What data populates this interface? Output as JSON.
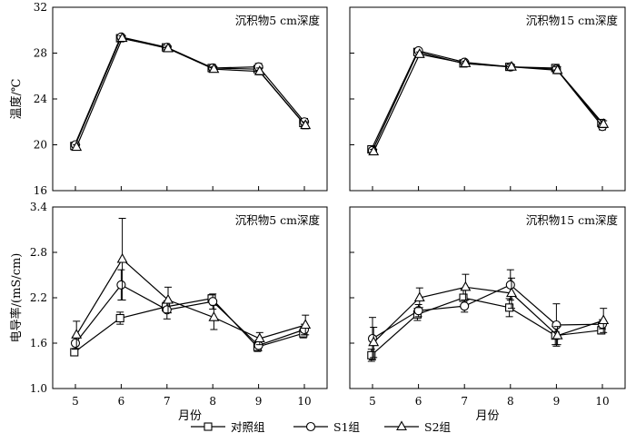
{
  "chart_data": [
    {
      "type": "line",
      "title": "沉积物5 cm深度",
      "ylabel": "温度/℃",
      "xlabel": "",
      "x": [
        "5",
        "6",
        "7",
        "8",
        "9",
        "10"
      ],
      "ylim": [
        16,
        32
      ],
      "yticks": [
        "16",
        "20",
        "24",
        "28",
        "32"
      ],
      "series": [
        {
          "name": "对照组",
          "values": [
            19.9,
            29.3,
            28.5,
            26.7,
            26.6,
            21.9
          ],
          "errors": [
            0.2,
            0.2,
            0.2,
            0.2,
            0.3,
            0.3
          ]
        },
        {
          "name": "S1组",
          "values": [
            20.0,
            29.4,
            28.5,
            26.7,
            26.8,
            22.0
          ],
          "errors": [
            0.2,
            0.2,
            0.2,
            0.2,
            0.3,
            0.3
          ]
        },
        {
          "name": "S2组",
          "values": [
            19.8,
            29.3,
            28.4,
            26.6,
            26.4,
            21.7
          ],
          "errors": [
            0.2,
            0.2,
            0.2,
            0.2,
            0.3,
            0.3
          ]
        }
      ]
    },
    {
      "type": "line",
      "title": "沉积物15 cm深度",
      "ylabel": "",
      "xlabel": "",
      "x": [
        "5",
        "6",
        "7",
        "8",
        "9",
        "10"
      ],
      "ylim": [
        16,
        32
      ],
      "series": [
        {
          "name": "对照组",
          "values": [
            19.6,
            28.1,
            27.1,
            26.8,
            26.7,
            21.9
          ],
          "errors": [
            0.2,
            0.2,
            0.2,
            0.2,
            0.3,
            0.3
          ]
        },
        {
          "name": "S1组",
          "values": [
            19.5,
            28.2,
            27.2,
            26.8,
            26.6,
            21.6
          ],
          "errors": [
            0.2,
            0.2,
            0.2,
            0.2,
            0.3,
            0.3
          ]
        },
        {
          "name": "S2组",
          "values": [
            19.4,
            27.9,
            27.1,
            26.8,
            26.5,
            21.8
          ],
          "errors": [
            0.2,
            0.2,
            0.2,
            0.2,
            0.3,
            0.3
          ]
        }
      ]
    },
    {
      "type": "line",
      "title": "沉积物5 cm深度",
      "ylabel": "电导率/(mS/cm)",
      "xlabel": "月份",
      "x": [
        "5",
        "6",
        "7",
        "8",
        "9",
        "10"
      ],
      "ylim": [
        1.0,
        3.4
      ],
      "yticks": [
        "1.0",
        "1.6",
        "2.2",
        "2.8",
        "3.4"
      ],
      "series": [
        {
          "name": "对照组",
          "values": [
            1.48,
            1.93,
            2.08,
            2.19,
            1.55,
            1.73
          ],
          "errors": [
            0.04,
            0.08,
            0.06,
            0.05,
            0.06,
            0.06
          ]
        },
        {
          "name": "S1组",
          "values": [
            1.6,
            2.37,
            2.04,
            2.15,
            1.57,
            1.78
          ],
          "errors": [
            0.08,
            0.2,
            0.12,
            0.1,
            0.07,
            0.07
          ]
        },
        {
          "name": "S2组",
          "values": [
            1.71,
            2.71,
            2.17,
            1.94,
            1.66,
            1.84
          ],
          "errors": [
            0.18,
            0.54,
            0.17,
            0.16,
            0.08,
            0.13
          ]
        }
      ]
    },
    {
      "type": "line",
      "title": "沉积物15 cm深度",
      "ylabel": "",
      "xlabel": "月份",
      "x": [
        "5",
        "6",
        "7",
        "8",
        "9",
        "10"
      ],
      "ylim": [
        1.0,
        3.4
      ],
      "series": [
        {
          "name": "对照组",
          "values": [
            1.44,
            1.98,
            2.2,
            2.07,
            1.7,
            1.77
          ],
          "errors": [
            0.08,
            0.08,
            0.12,
            0.12,
            0.12,
            0.05
          ]
        },
        {
          "name": "S1组",
          "values": [
            1.66,
            2.03,
            2.09,
            2.37,
            1.84,
            1.85
          ],
          "errors": [
            0.28,
            0.08,
            0.08,
            0.2,
            0.28,
            0.06
          ]
        },
        {
          "name": "S2组",
          "values": [
            1.61,
            2.2,
            2.34,
            2.26,
            1.7,
            1.9
          ],
          "errors": [
            0.2,
            0.13,
            0.17,
            0.2,
            0.12,
            0.16
          ]
        }
      ]
    }
  ],
  "legend": {
    "position": "bottom-center",
    "items": [
      {
        "label": "对照组",
        "marker": "square"
      },
      {
        "label": "S1组",
        "marker": "circle"
      },
      {
        "label": "S2组",
        "marker": "triangle"
      }
    ]
  },
  "colors": {
    "line": "#000000",
    "marker_fill": "#ffffff"
  }
}
